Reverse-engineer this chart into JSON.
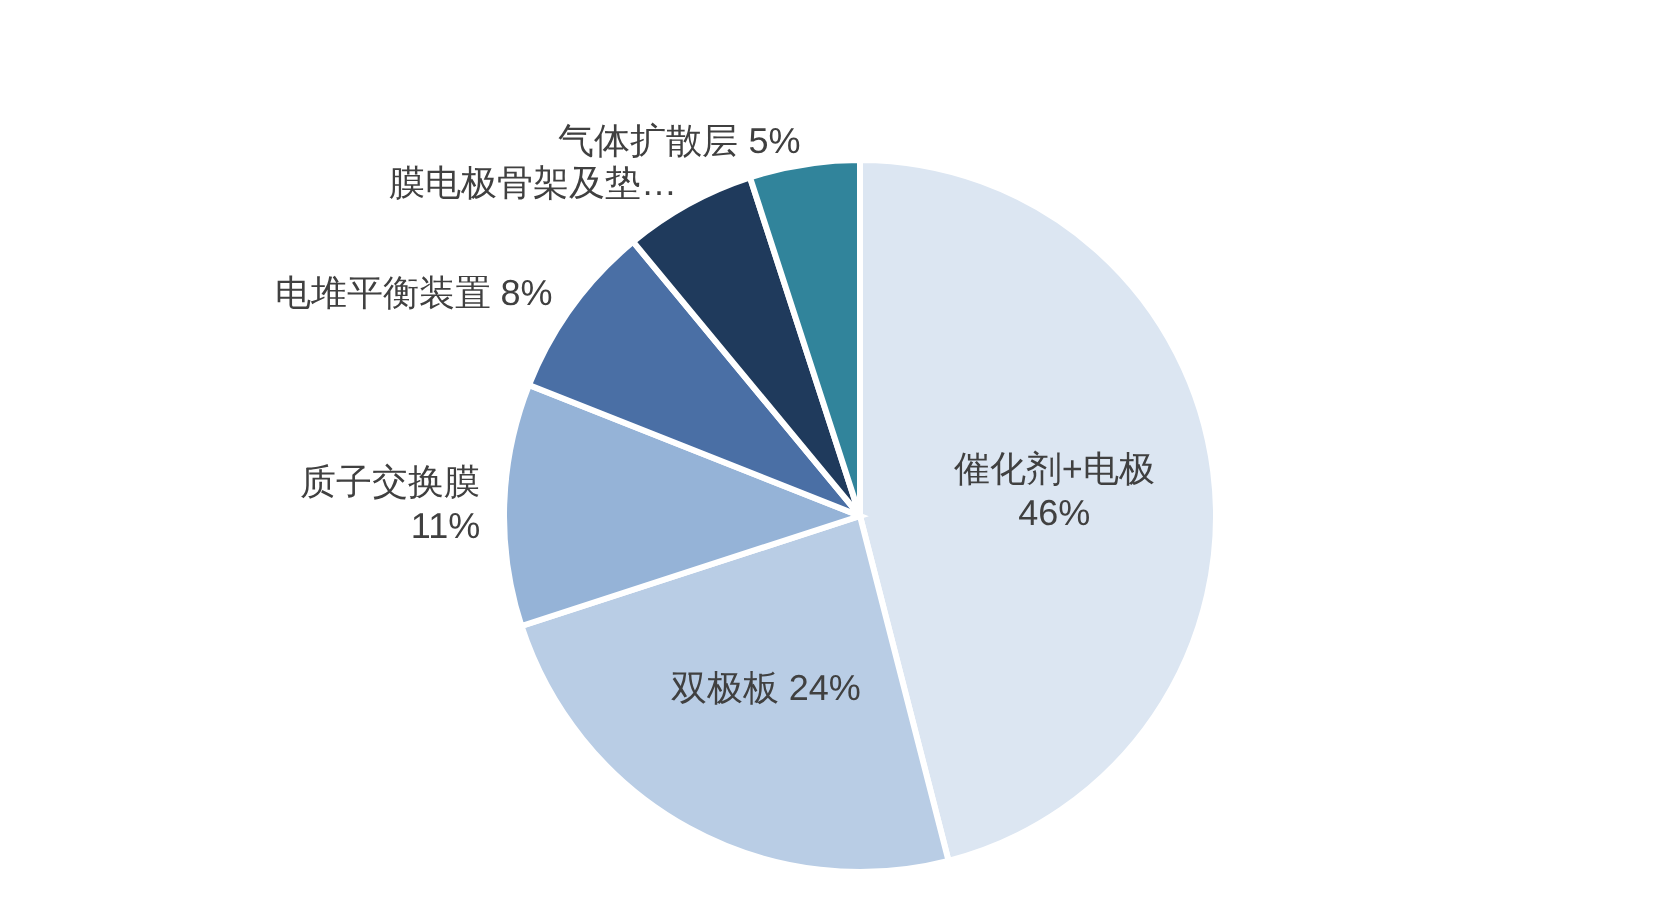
{
  "chart_data": {
    "type": "pie",
    "categories": [
      "催化剂+电极",
      "双极板",
      "质子交换膜",
      "电堆平衡装置",
      "膜电极骨架及垫…",
      "气体扩散层"
    ],
    "values": [
      46,
      24,
      11,
      8,
      6,
      5
    ],
    "value_labels": [
      "46%",
      "24%",
      "11%",
      "8%",
      null,
      "5%"
    ],
    "colors": [
      "#dce6f2",
      "#b9cde5",
      "#95b3d7",
      "#4a6fa5",
      "#1f3a5c",
      "#31849b"
    ]
  }
}
